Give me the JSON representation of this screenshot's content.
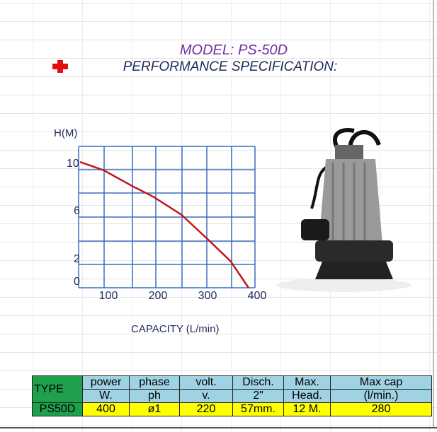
{
  "header": {
    "model": "MODEL: PS-50D",
    "subtitle": "PERFORMANCE SPECIFICATION:"
  },
  "icons": {
    "cross": "red-cross-icon"
  },
  "colors": {
    "curve": "#c0161b",
    "grid": "#3b6fc0",
    "model": "#7030a0",
    "header_bg": "#9fd3e3",
    "type_bg": "#1ea04c",
    "value_bg": "#ffff00"
  },
  "chart_data": {
    "type": "line",
    "ylabel": "H(M)",
    "xlabel": "CAPACITY  (L/min)",
    "x_ticks": [
      "100",
      "200",
      "300",
      "400"
    ],
    "y_ticks": [
      "10",
      "6",
      "2",
      "0"
    ],
    "xlim": [
      40,
      397
    ],
    "ylim": [
      -0.4,
      11.4
    ],
    "grid": true,
    "x": [
      43,
      91,
      148,
      191,
      248,
      300,
      348,
      384
    ],
    "y": [
      10.1,
      9.4,
      8.1,
      7.2,
      5.7,
      3.7,
      1.8,
      -0.4
    ]
  },
  "table": {
    "type_label": "TYPE",
    "headers1": [
      "power",
      "phase",
      "volt.",
      "Disch.",
      "Max.",
      "Max cap"
    ],
    "headers2": [
      "W.",
      "ph",
      "v.",
      "2\"",
      "Head.",
      "(l/min.)"
    ],
    "model": "PS50D",
    "values": [
      "400",
      "ø1",
      "220",
      "57mm.",
      "12 M.",
      "280"
    ]
  }
}
